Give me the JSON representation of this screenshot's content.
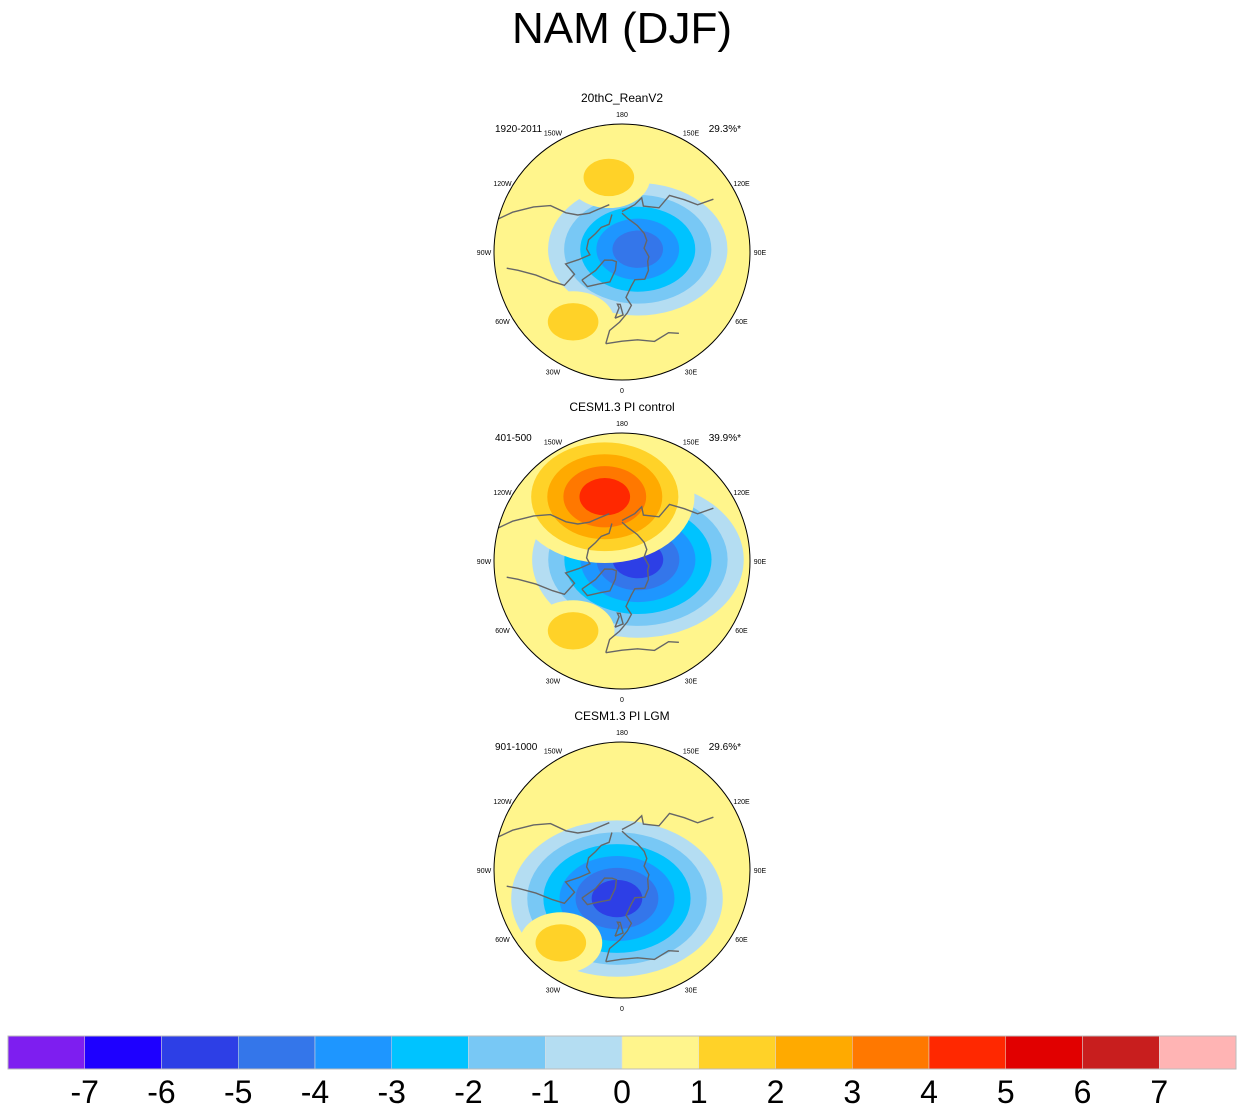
{
  "title": "NAM (DJF)",
  "chart_data": [
    {
      "type": "heatmap",
      "projection": "north-polar-stereographic",
      "title": "20thC_ReanV2",
      "period": "1920-2011",
      "variance_explained": "29.3%*",
      "longitude_labels": [
        "180",
        "150E",
        "120E",
        "90E",
        "60E",
        "30E",
        "0",
        "30W",
        "60W",
        "90W",
        "120W",
        "150W"
      ],
      "features": [
        {
          "name": "arctic low",
          "lon": 100,
          "lat": 80,
          "value": -5
        },
        {
          "name": "north pacific high",
          "lon": -170,
          "lat": 45,
          "value": 2
        },
        {
          "name": "atlantic high",
          "lon": -35,
          "lat": 40,
          "value": 2
        }
      ]
    },
    {
      "type": "heatmap",
      "projection": "north-polar-stereographic",
      "title": "CESM1.3 PI control",
      "period": "401-500",
      "variance_explained": "39.9%*",
      "longitude_labels": [
        "180",
        "150E",
        "120E",
        "90E",
        "60E",
        "30E",
        "0",
        "30W",
        "60W",
        "90W",
        "120W",
        "150W"
      ],
      "features": [
        {
          "name": "arctic low",
          "lon": 95,
          "lat": 80,
          "value": -6
        },
        {
          "name": "north pacific high",
          "lon": -165,
          "lat": 50,
          "value": 5
        },
        {
          "name": "atlantic high",
          "lon": -35,
          "lat": 40,
          "value": 2
        }
      ]
    },
    {
      "type": "heatmap",
      "projection": "north-polar-stereographic",
      "title": "CESM1.3 PI LGM",
      "period": "901-1000",
      "variance_explained": "29.6%*",
      "longitude_labels": [
        "180",
        "150E",
        "120E",
        "90E",
        "60E",
        "30E",
        "0",
        "30W",
        "60W",
        "90W",
        "120W",
        "150W"
      ],
      "features": [
        {
          "name": "arctic low",
          "lon": -10,
          "lat": 72,
          "value": -6
        },
        {
          "name": "atlantic high",
          "lon": -40,
          "lat": 35,
          "value": 2
        }
      ]
    }
  ],
  "colorbar": {
    "labels": [
      "-7",
      "-6",
      "-5",
      "-4",
      "-3",
      "-2",
      "-1",
      "0",
      "1",
      "2",
      "3",
      "4",
      "5",
      "6",
      "7"
    ],
    "colors": [
      "#7e1ef0",
      "#1e00ff",
      "#2d3fe6",
      "#3476ea",
      "#1e96ff",
      "#00c3ff",
      "#78c8f5",
      "#b4ddf2",
      "#fff58c",
      "#ffd228",
      "#ffaa00",
      "#ff7800",
      "#ff2800",
      "#e10000",
      "#c81e1e",
      "#ffb4b4"
    ]
  }
}
